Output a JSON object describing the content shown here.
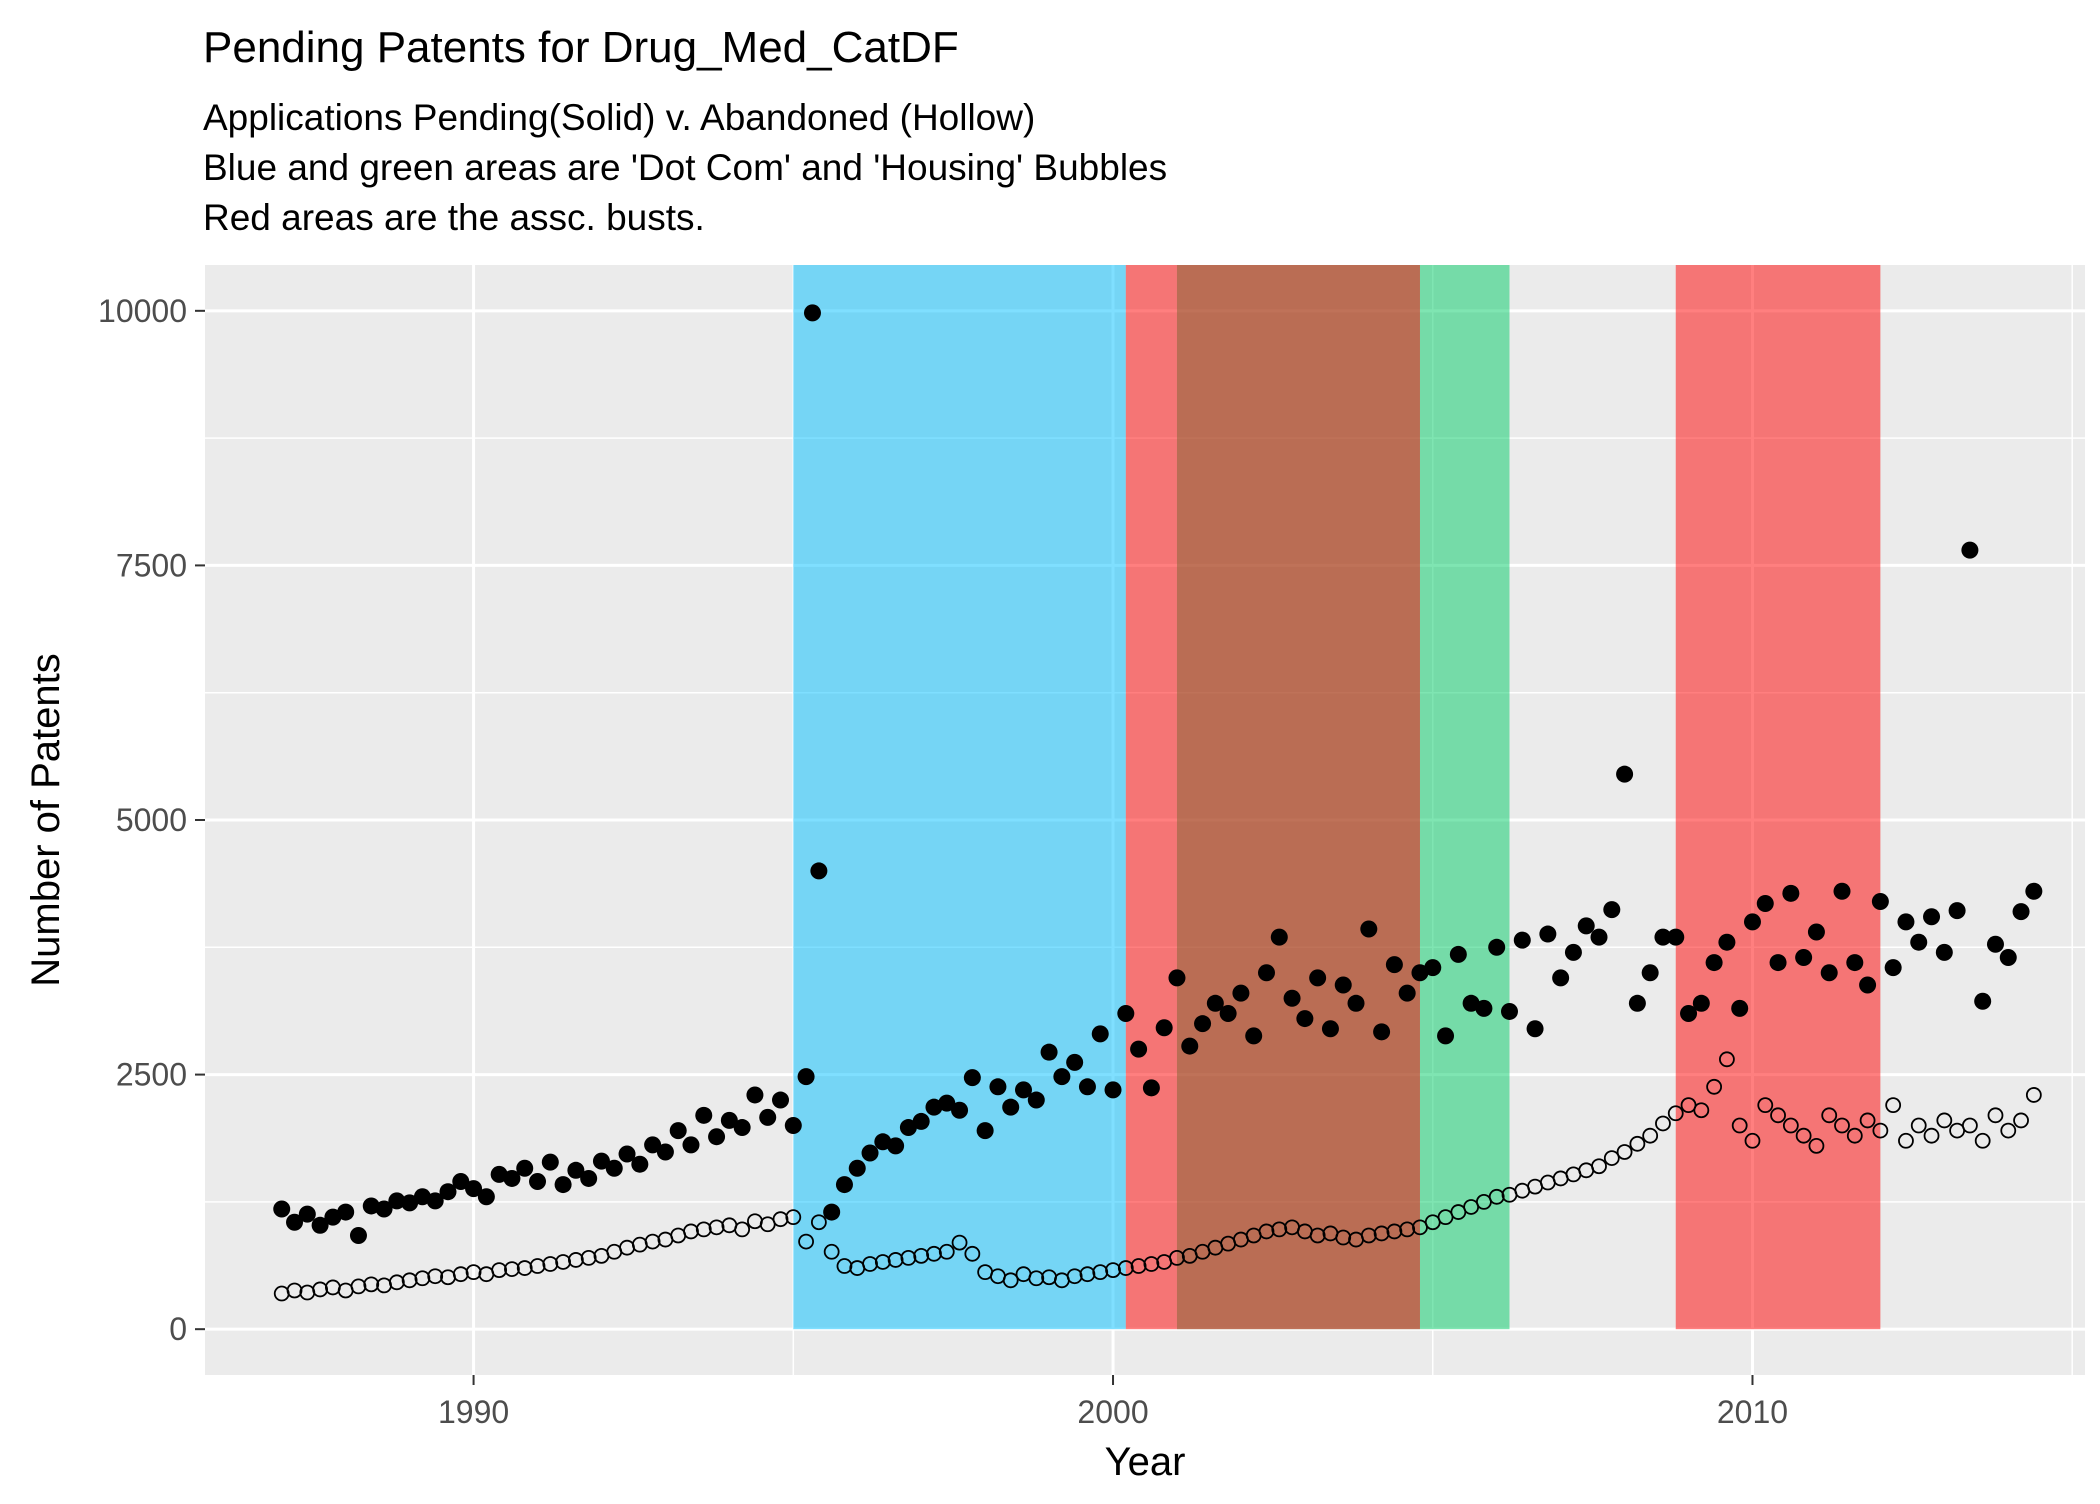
{
  "chart_data": {
    "type": "scatter",
    "title": "Pending Patents for Drug_Med_CatDF",
    "subtitle_lines": [
      "Applications Pending(Solid) v. Abandoned (Hollow)",
      "Blue and green areas are 'Dot Com' and 'Housing' Bubbles",
      "Red areas are the assc. busts."
    ],
    "xlabel": "Year",
    "ylabel": "Number of Patents",
    "xlim": [
      1985.8,
      2015.2
    ],
    "ylim": [
      -450,
      10450
    ],
    "x_ticks": [
      1990,
      2000,
      2010
    ],
    "x_minor_ticks": [
      1985,
      1995,
      2005,
      2015
    ],
    "y_ticks": [
      0,
      2500,
      5000,
      7500,
      10000
    ],
    "y_minor_ticks": [
      1250,
      3750,
      6250,
      8750
    ],
    "grid": true,
    "background_colors": {
      "panel": "#EBEBEB",
      "gridline": "#FFFFFF"
    },
    "shaded_regions": [
      {
        "x_start": 1995.0,
        "x_end": 2000.2,
        "y_start": 0,
        "y_end": 10450,
        "color": "#00BFFF",
        "opacity": 0.5
      },
      {
        "x_start": 2000.2,
        "x_end": 2001.0,
        "y_start": 0,
        "y_end": 10450,
        "color": "#FF0000",
        "opacity": 0.5
      },
      {
        "x_start": 2001.0,
        "x_end": 2006.2,
        "y_start": 0,
        "y_end": 10450,
        "color": "#00CC66",
        "opacity": 0.5
      },
      {
        "x_start": 2001.0,
        "x_end": 2004.8,
        "y_start": 0,
        "y_end": 10450,
        "color": "#FF0000",
        "opacity": 0.5
      },
      {
        "x_start": 2008.8,
        "x_end": 2012.0,
        "y_start": 0,
        "y_end": 10450,
        "color": "#FF0000",
        "opacity": 0.5
      }
    ],
    "series": [
      {
        "marker": "solid",
        "color": "#000000",
        "points": [
          [
            1987.0,
            1180
          ],
          [
            1987.2,
            1050
          ],
          [
            1987.4,
            1130
          ],
          [
            1987.6,
            1020
          ],
          [
            1987.8,
            1100
          ],
          [
            1988.0,
            1150
          ],
          [
            1988.2,
            920
          ],
          [
            1988.4,
            1210
          ],
          [
            1988.6,
            1180
          ],
          [
            1988.8,
            1260
          ],
          [
            1989.0,
            1240
          ],
          [
            1989.2,
            1300
          ],
          [
            1989.4,
            1260
          ],
          [
            1989.6,
            1350
          ],
          [
            1989.8,
            1450
          ],
          [
            1990.0,
            1380
          ],
          [
            1990.2,
            1300
          ],
          [
            1990.4,
            1520
          ],
          [
            1990.6,
            1480
          ],
          [
            1990.8,
            1580
          ],
          [
            1991.0,
            1450
          ],
          [
            1991.2,
            1640
          ],
          [
            1991.4,
            1420
          ],
          [
            1991.6,
            1560
          ],
          [
            1991.8,
            1480
          ],
          [
            1992.0,
            1650
          ],
          [
            1992.2,
            1580
          ],
          [
            1992.4,
            1720
          ],
          [
            1992.6,
            1620
          ],
          [
            1992.8,
            1810
          ],
          [
            1993.0,
            1740
          ],
          [
            1993.2,
            1950
          ],
          [
            1993.4,
            1810
          ],
          [
            1993.6,
            2100
          ],
          [
            1993.8,
            1890
          ],
          [
            1994.0,
            2050
          ],
          [
            1994.2,
            1980
          ],
          [
            1994.4,
            2300
          ],
          [
            1994.6,
            2080
          ],
          [
            1994.8,
            2250
          ],
          [
            1995.0,
            2000
          ],
          [
            1995.2,
            2480
          ],
          [
            1995.4,
            4500
          ],
          [
            1995.6,
            1150
          ],
          [
            1995.8,
            1420
          ],
          [
            1996.0,
            1580
          ],
          [
            1996.2,
            1730
          ],
          [
            1996.4,
            1840
          ],
          [
            1996.6,
            1800
          ],
          [
            1996.8,
            1980
          ],
          [
            1997.0,
            2040
          ],
          [
            1997.2,
            2180
          ],
          [
            1997.4,
            2220
          ],
          [
            1997.6,
            2150
          ],
          [
            1997.8,
            2470
          ],
          [
            1998.0,
            1950
          ],
          [
            1998.2,
            2380
          ],
          [
            1998.4,
            2180
          ],
          [
            1998.6,
            2350
          ],
          [
            1998.8,
            2250
          ],
          [
            1999.0,
            2720
          ],
          [
            1999.2,
            2480
          ],
          [
            1999.4,
            2620
          ],
          [
            1999.6,
            2380
          ],
          [
            1999.8,
            2900
          ],
          [
            2000.0,
            2350
          ],
          [
            2000.2,
            3100
          ],
          [
            2000.4,
            2750
          ],
          [
            2000.6,
            2370
          ],
          [
            2000.8,
            2960
          ],
          [
            2001.0,
            3450
          ],
          [
            2001.2,
            2780
          ],
          [
            2001.4,
            3000
          ],
          [
            2001.6,
            3200
          ],
          [
            2001.8,
            3100
          ],
          [
            2002.0,
            3300
          ],
          [
            2002.2,
            2880
          ],
          [
            2002.4,
            3500
          ],
          [
            2002.6,
            3850
          ],
          [
            2002.8,
            3250
          ],
          [
            2003.0,
            3050
          ],
          [
            2003.2,
            3450
          ],
          [
            2003.4,
            2950
          ],
          [
            2003.6,
            3380
          ],
          [
            2003.8,
            3200
          ],
          [
            2004.0,
            3930
          ],
          [
            2004.2,
            2920
          ],
          [
            2004.4,
            3580
          ],
          [
            2004.6,
            3300
          ],
          [
            2004.8,
            3500
          ],
          [
            2005.0,
            3550
          ],
          [
            2005.2,
            2880
          ],
          [
            2005.4,
            3680
          ],
          [
            2005.6,
            3200
          ],
          [
            2005.8,
            3150
          ],
          [
            2006.0,
            3750
          ],
          [
            2006.2,
            3120
          ],
          [
            2006.4,
            3820
          ],
          [
            2006.6,
            2950
          ],
          [
            2006.8,
            3880
          ],
          [
            2007.0,
            3450
          ],
          [
            2007.2,
            3700
          ],
          [
            2007.4,
            3960
          ],
          [
            2007.6,
            3850
          ],
          [
            2007.8,
            4120
          ],
          [
            2008.0,
            5450
          ],
          [
            2008.2,
            3200
          ],
          [
            2008.4,
            3500
          ],
          [
            2008.6,
            3850
          ],
          [
            2008.8,
            3850
          ],
          [
            2009.0,
            3100
          ],
          [
            2009.2,
            3200
          ],
          [
            2009.4,
            3600
          ],
          [
            2009.6,
            3800
          ],
          [
            2009.8,
            3150
          ],
          [
            2010.0,
            4000
          ],
          [
            2010.2,
            4180
          ],
          [
            2010.4,
            3600
          ],
          [
            2010.6,
            4280
          ],
          [
            2010.8,
            3650
          ],
          [
            2011.0,
            3900
          ],
          [
            2011.2,
            3500
          ],
          [
            2011.4,
            4300
          ],
          [
            2011.6,
            3600
          ],
          [
            2011.8,
            3380
          ],
          [
            2012.0,
            4200
          ],
          [
            2012.2,
            3550
          ],
          [
            2012.4,
            4000
          ],
          [
            2012.6,
            3800
          ],
          [
            2012.8,
            4050
          ],
          [
            2013.0,
            3700
          ],
          [
            2013.2,
            4110
          ],
          [
            2013.4,
            7650
          ],
          [
            2013.6,
            3220
          ],
          [
            2013.8,
            3780
          ],
          [
            2014.0,
            3650
          ],
          [
            2014.2,
            4100
          ],
          [
            2014.4,
            4300
          ],
          [
            1995.3,
            9980
          ]
        ]
      },
      {
        "marker": "hollow",
        "color": "#000000",
        "points": [
          [
            1987.0,
            350
          ],
          [
            1987.2,
            380
          ],
          [
            1987.4,
            360
          ],
          [
            1987.6,
            390
          ],
          [
            1987.8,
            410
          ],
          [
            1988.0,
            380
          ],
          [
            1988.2,
            420
          ],
          [
            1988.4,
            440
          ],
          [
            1988.6,
            430
          ],
          [
            1988.8,
            460
          ],
          [
            1989.0,
            480
          ],
          [
            1989.2,
            500
          ],
          [
            1989.4,
            520
          ],
          [
            1989.6,
            510
          ],
          [
            1989.8,
            540
          ],
          [
            1990.0,
            560
          ],
          [
            1990.2,
            540
          ],
          [
            1990.4,
            580
          ],
          [
            1990.6,
            590
          ],
          [
            1990.8,
            600
          ],
          [
            1991.0,
            620
          ],
          [
            1991.2,
            640
          ],
          [
            1991.4,
            660
          ],
          [
            1991.6,
            680
          ],
          [
            1991.8,
            700
          ],
          [
            1992.0,
            720
          ],
          [
            1992.2,
            760
          ],
          [
            1992.4,
            800
          ],
          [
            1992.6,
            830
          ],
          [
            1992.8,
            860
          ],
          [
            1993.0,
            880
          ],
          [
            1993.2,
            920
          ],
          [
            1993.4,
            960
          ],
          [
            1993.6,
            980
          ],
          [
            1993.8,
            1000
          ],
          [
            1994.0,
            1020
          ],
          [
            1994.2,
            980
          ],
          [
            1994.4,
            1060
          ],
          [
            1994.6,
            1030
          ],
          [
            1994.8,
            1080
          ],
          [
            1995.0,
            1100
          ],
          [
            1995.2,
            860
          ],
          [
            1995.4,
            1050
          ],
          [
            1995.6,
            760
          ],
          [
            1995.8,
            620
          ],
          [
            1996.0,
            600
          ],
          [
            1996.2,
            640
          ],
          [
            1996.4,
            660
          ],
          [
            1996.6,
            680
          ],
          [
            1996.8,
            700
          ],
          [
            1997.0,
            720
          ],
          [
            1997.2,
            740
          ],
          [
            1997.4,
            760
          ],
          [
            1997.6,
            850
          ],
          [
            1997.8,
            740
          ],
          [
            1998.0,
            560
          ],
          [
            1998.2,
            520
          ],
          [
            1998.4,
            480
          ],
          [
            1998.6,
            540
          ],
          [
            1998.8,
            500
          ],
          [
            1999.0,
            510
          ],
          [
            1999.2,
            480
          ],
          [
            1999.4,
            520
          ],
          [
            1999.6,
            540
          ],
          [
            1999.8,
            560
          ],
          [
            2000.0,
            580
          ],
          [
            2000.2,
            600
          ],
          [
            2000.4,
            620
          ],
          [
            2000.6,
            640
          ],
          [
            2000.8,
            660
          ],
          [
            2001.0,
            700
          ],
          [
            2001.2,
            720
          ],
          [
            2001.4,
            760
          ],
          [
            2001.6,
            800
          ],
          [
            2001.8,
            840
          ],
          [
            2002.0,
            880
          ],
          [
            2002.2,
            920
          ],
          [
            2002.4,
            960
          ],
          [
            2002.6,
            980
          ],
          [
            2002.8,
            1000
          ],
          [
            2003.0,
            960
          ],
          [
            2003.2,
            920
          ],
          [
            2003.4,
            940
          ],
          [
            2003.6,
            900
          ],
          [
            2003.8,
            880
          ],
          [
            2004.0,
            920
          ],
          [
            2004.2,
            940
          ],
          [
            2004.4,
            960
          ],
          [
            2004.6,
            980
          ],
          [
            2004.8,
            1000
          ],
          [
            2005.0,
            1050
          ],
          [
            2005.2,
            1100
          ],
          [
            2005.4,
            1150
          ],
          [
            2005.6,
            1200
          ],
          [
            2005.8,
            1250
          ],
          [
            2006.0,
            1300
          ],
          [
            2006.2,
            1320
          ],
          [
            2006.4,
            1360
          ],
          [
            2006.6,
            1400
          ],
          [
            2006.8,
            1440
          ],
          [
            2007.0,
            1480
          ],
          [
            2007.2,
            1520
          ],
          [
            2007.4,
            1560
          ],
          [
            2007.6,
            1600
          ],
          [
            2007.8,
            1680
          ],
          [
            2008.0,
            1740
          ],
          [
            2008.2,
            1820
          ],
          [
            2008.4,
            1900
          ],
          [
            2008.6,
            2020
          ],
          [
            2008.8,
            2120
          ],
          [
            2009.0,
            2200
          ],
          [
            2009.2,
            2150
          ],
          [
            2009.4,
            2380
          ],
          [
            2009.6,
            2650
          ],
          [
            2009.8,
            2000
          ],
          [
            2010.0,
            1850
          ],
          [
            2010.2,
            2200
          ],
          [
            2010.4,
            2100
          ],
          [
            2010.6,
            2000
          ],
          [
            2010.8,
            1900
          ],
          [
            2011.0,
            1800
          ],
          [
            2011.2,
            2100
          ],
          [
            2011.4,
            2000
          ],
          [
            2011.6,
            1900
          ],
          [
            2011.8,
            2050
          ],
          [
            2012.0,
            1950
          ],
          [
            2012.2,
            2200
          ],
          [
            2012.4,
            1850
          ],
          [
            2012.6,
            2000
          ],
          [
            2012.8,
            1900
          ],
          [
            2013.0,
            2050
          ],
          [
            2013.2,
            1950
          ],
          [
            2013.4,
            2000
          ],
          [
            2013.6,
            1850
          ],
          [
            2013.8,
            2100
          ],
          [
            2014.0,
            1950
          ],
          [
            2014.2,
            2050
          ],
          [
            2014.4,
            2300
          ]
        ]
      }
    ]
  }
}
